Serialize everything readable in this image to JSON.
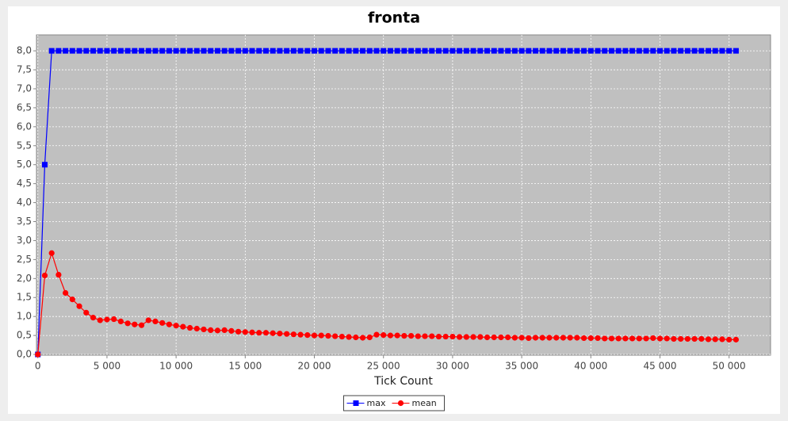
{
  "chart_data": {
    "type": "line",
    "title": "fronta",
    "x_label": "Tick Count",
    "x": [
      0,
      500,
      1000,
      1500,
      2000,
      2500,
      3000,
      3500,
      4000,
      4500,
      5000,
      5500,
      6000,
      6500,
      7000,
      7500,
      8000,
      8500,
      9000,
      9500,
      10000,
      10500,
      11000,
      11500,
      12000,
      12500,
      13000,
      13500,
      14000,
      14500,
      15000,
      15500,
      16000,
      16500,
      17000,
      17500,
      18000,
      18500,
      19000,
      19500,
      20000,
      20500,
      21000,
      21500,
      22000,
      22500,
      23000,
      23500,
      24000,
      24500,
      25000,
      25500,
      26000,
      26500,
      27000,
      27500,
      28000,
      28500,
      29000,
      29500,
      30000,
      30500,
      31000,
      31500,
      32000,
      32500,
      33000,
      33500,
      34000,
      34500,
      35000,
      35500,
      36000,
      36500,
      37000,
      37500,
      38000,
      38500,
      39000,
      39500,
      40000,
      40500,
      41000,
      41500,
      42000,
      42500,
      43000,
      43500,
      44000,
      44500,
      45000,
      45500,
      46000,
      46500,
      47000,
      47500,
      48000,
      48500,
      49000,
      49500,
      50000,
      50500
    ],
    "series": [
      {
        "name": "max",
        "color": "#0000ff",
        "marker": "square",
        "values": [
          0,
          5,
          8,
          8,
          8,
          8,
          8,
          8,
          8,
          8,
          8,
          8,
          8,
          8,
          8,
          8,
          8,
          8,
          8,
          8,
          8,
          8,
          8,
          8,
          8,
          8,
          8,
          8,
          8,
          8,
          8,
          8,
          8,
          8,
          8,
          8,
          8,
          8,
          8,
          8,
          8,
          8,
          8,
          8,
          8,
          8,
          8,
          8,
          8,
          8,
          8,
          8,
          8,
          8,
          8,
          8,
          8,
          8,
          8,
          8,
          8,
          8,
          8,
          8,
          8,
          8,
          8,
          8,
          8,
          8,
          8,
          8,
          8,
          8,
          8,
          8,
          8,
          8,
          8,
          8,
          8,
          8,
          8,
          8,
          8,
          8,
          8,
          8,
          8,
          8,
          8,
          8,
          8,
          8,
          8,
          8,
          8,
          8,
          8,
          8,
          8,
          8
        ]
      },
      {
        "name": "mean",
        "color": "#ff0000",
        "marker": "circle",
        "values": [
          0,
          2.08,
          2.67,
          2.1,
          1.62,
          1.45,
          1.27,
          1.1,
          0.97,
          0.9,
          0.92,
          0.93,
          0.87,
          0.82,
          0.79,
          0.77,
          0.9,
          0.87,
          0.83,
          0.79,
          0.76,
          0.73,
          0.7,
          0.68,
          0.66,
          0.64,
          0.63,
          0.64,
          0.62,
          0.6,
          0.59,
          0.58,
          0.57,
          0.57,
          0.56,
          0.55,
          0.54,
          0.53,
          0.52,
          0.51,
          0.5,
          0.5,
          0.49,
          0.48,
          0.47,
          0.46,
          0.45,
          0.44,
          0.45,
          0.52,
          0.51,
          0.5,
          0.5,
          0.49,
          0.49,
          0.48,
          0.48,
          0.48,
          0.47,
          0.47,
          0.47,
          0.46,
          0.46,
          0.46,
          0.46,
          0.45,
          0.45,
          0.45,
          0.45,
          0.44,
          0.44,
          0.43,
          0.44,
          0.44,
          0.44,
          0.44,
          0.44,
          0.44,
          0.44,
          0.43,
          0.43,
          0.43,
          0.42,
          0.42,
          0.42,
          0.42,
          0.42,
          0.42,
          0.42,
          0.43,
          0.42,
          0.42,
          0.41,
          0.41,
          0.41,
          0.41,
          0.41,
          0.4,
          0.4,
          0.4,
          0.39,
          0.39
        ]
      }
    ],
    "xlim": [
      -100,
      53000
    ],
    "ylim": [
      -0.02,
      8.42
    ],
    "xticks": [
      0,
      {
        "value": 5000,
        "label": "5 000"
      },
      {
        "value": 10000,
        "label": "10 000"
      },
      {
        "value": 15000,
        "label": "15 000"
      },
      {
        "value": 20000,
        "label": "20 000"
      },
      {
        "value": 25000,
        "label": "25 000"
      },
      {
        "value": 30000,
        "label": "30 000"
      },
      {
        "value": 35000,
        "label": "35 000"
      },
      {
        "value": 40000,
        "label": "40 000"
      },
      {
        "value": 45000,
        "label": "45 000"
      },
      {
        "value": 50000,
        "label": "50 000"
      }
    ],
    "yticks": [
      {
        "value": 0,
        "label": "0,0"
      },
      {
        "value": 0.5,
        "label": "0,5"
      },
      {
        "value": 1,
        "label": "1,0"
      },
      {
        "value": 1.5,
        "label": "1,5"
      },
      {
        "value": 2,
        "label": "2,0"
      },
      {
        "value": 2.5,
        "label": "2,5"
      },
      {
        "value": 3,
        "label": "3,0"
      },
      {
        "value": 3.5,
        "label": "3,5"
      },
      {
        "value": 4,
        "label": "4,0"
      },
      {
        "value": 4.5,
        "label": "4,5"
      },
      {
        "value": 5,
        "label": "5,0"
      },
      {
        "value": 5.5,
        "label": "5,5"
      },
      {
        "value": 6,
        "label": "6,0"
      },
      {
        "value": 6.5,
        "label": "6,5"
      },
      {
        "value": 7,
        "label": "7,0"
      },
      {
        "value": 7.5,
        "label": "7,5"
      },
      {
        "value": 8,
        "label": "8,0"
      }
    ],
    "grid": true,
    "legend": "bottom"
  }
}
